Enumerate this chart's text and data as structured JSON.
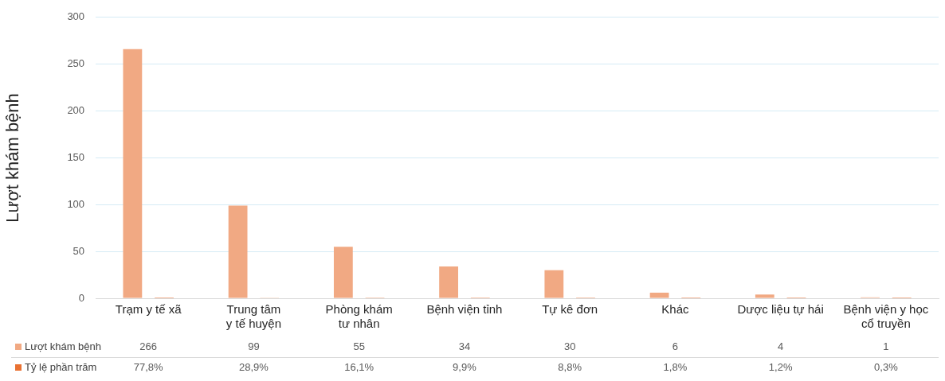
{
  "chart_data": {
    "type": "bar",
    "ylabel": "Lượt khám bệnh",
    "categories": [
      "Trạm y tế xã",
      "Trung tâm\ny tế huyện",
      "Phòng khám\ntư nhân",
      "Bệnh viện tỉnh",
      "Tự kê đơn",
      "Khác",
      "Dược liệu tự hái",
      "Bệnh viện y học\ncổ truyền"
    ],
    "series": [
      {
        "name": "Lượt khám bệnh",
        "color": "#f1a983",
        "values": [
          266,
          99,
          55,
          34,
          30,
          6,
          4,
          1
        ],
        "value_labels": [
          "266",
          "99",
          "55",
          "34",
          "30",
          "6",
          "4",
          "1"
        ]
      },
      {
        "name": "Tỷ lệ phần trăm",
        "color": "#e97132",
        "values": [
          0.778,
          0.289,
          0.161,
          0.099,
          0.088,
          0.018,
          0.012,
          0.003
        ],
        "value_labels": [
          "77,8%",
          "28,9%",
          "16,1%",
          "9,9%",
          "8,8%",
          "1,8%",
          "1,2%",
          "0,3%"
        ]
      }
    ],
    "ylim": [
      0,
      300
    ],
    "yticks": [
      0,
      50,
      100,
      150,
      200,
      250,
      300
    ],
    "grid": "y",
    "legend": "bottom"
  }
}
